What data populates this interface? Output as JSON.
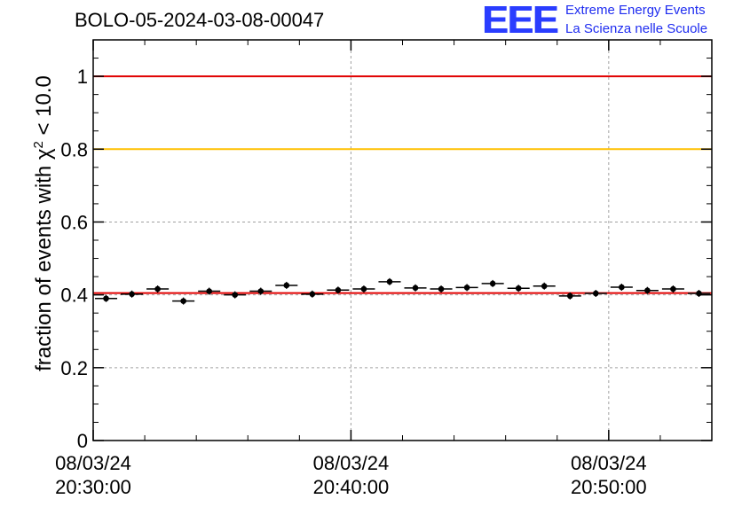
{
  "title": "BOLO-05-2024-03-08-00047",
  "logo": {
    "mark": "EEE",
    "line1": "Extreme Energy Events",
    "line2": "La Scienza nelle Scuole"
  },
  "colors": {
    "axis": "#000000",
    "grid": "#a0a0a0",
    "ref_red": "#e00000",
    "ref_yellow": "#ffc000",
    "marker": "#000000",
    "logo_blue": "#2a3dff"
  },
  "chart_data": {
    "type": "scatter",
    "title": "BOLO-05-2024-03-08-00047",
    "ylabel_prefix": "fraction of events with ",
    "ylabel_symbol": "χ",
    "ylabel_sup": "2",
    "ylabel_suffix": " < 10.0",
    "ylim": [
      0,
      1.1
    ],
    "y_ticks": [
      0,
      0.2,
      0.4,
      0.6,
      0.8,
      1
    ],
    "y_tick_labels": [
      "0",
      "0.2",
      "0.4",
      "0.6",
      "0.8",
      "1"
    ],
    "x_range_minutes": [
      0,
      24
    ],
    "x_major_ticks": [
      {
        "minutes": 0,
        "date": "08/03/24",
        "time": "20:30:00"
      },
      {
        "minutes": 10,
        "date": "08/03/24",
        "time": "20:40:00"
      },
      {
        "minutes": 20,
        "date": "08/03/24",
        "time": "20:50:00"
      }
    ],
    "x_minor_tick_step_minutes": 2,
    "grid": true,
    "reference_lines": [
      {
        "y": 1.0,
        "color": "red"
      },
      {
        "y": 0.8,
        "color": "yellow"
      },
      {
        "y": 0.405,
        "color": "red"
      }
    ],
    "bin_width_minutes": 1,
    "points": [
      {
        "x": 0.5,
        "y": 0.39
      },
      {
        "x": 1.5,
        "y": 0.402
      },
      {
        "x": 2.5,
        "y": 0.416
      },
      {
        "x": 3.5,
        "y": 0.383
      },
      {
        "x": 4.5,
        "y": 0.41
      },
      {
        "x": 5.5,
        "y": 0.4
      },
      {
        "x": 6.5,
        "y": 0.41
      },
      {
        "x": 7.5,
        "y": 0.426
      },
      {
        "x": 8.5,
        "y": 0.402
      },
      {
        "x": 9.5,
        "y": 0.413
      },
      {
        "x": 10.5,
        "y": 0.416
      },
      {
        "x": 11.5,
        "y": 0.436
      },
      {
        "x": 12.5,
        "y": 0.419
      },
      {
        "x": 13.5,
        "y": 0.416
      },
      {
        "x": 14.5,
        "y": 0.42
      },
      {
        "x": 15.5,
        "y": 0.431
      },
      {
        "x": 16.5,
        "y": 0.418
      },
      {
        "x": 17.5,
        "y": 0.424
      },
      {
        "x": 18.5,
        "y": 0.397
      },
      {
        "x": 19.5,
        "y": 0.404
      },
      {
        "x": 20.5,
        "y": 0.421
      },
      {
        "x": 21.5,
        "y": 0.412
      },
      {
        "x": 22.5,
        "y": 0.416
      },
      {
        "x": 23.5,
        "y": 0.404
      }
    ]
  }
}
